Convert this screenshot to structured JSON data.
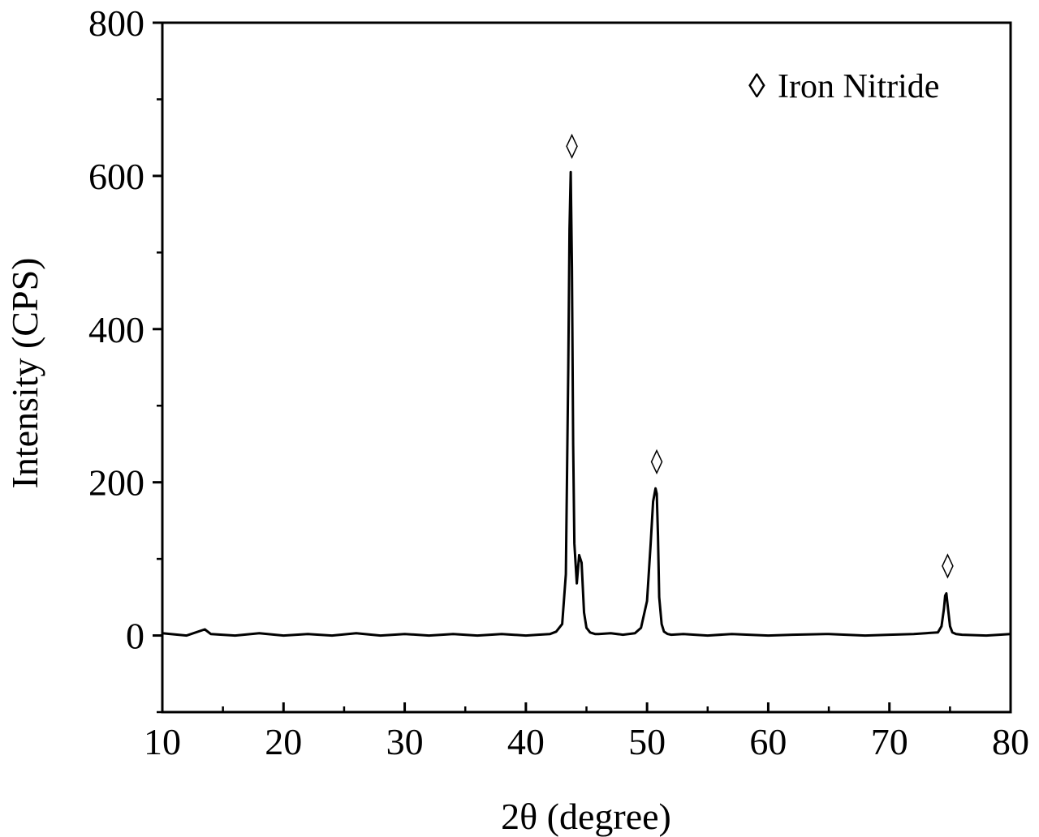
{
  "chart_data": {
    "type": "line",
    "title": "",
    "xlabel": "2θ (degree)",
    "ylabel": "Intensity (CPS)",
    "xlim": [
      10,
      80
    ],
    "ylim": [
      -100,
      800
    ],
    "xticks": [
      10,
      20,
      30,
      40,
      50,
      60,
      70,
      80
    ],
    "yticks": [
      0,
      200,
      400,
      600,
      800
    ],
    "grid": false,
    "legend": {
      "symbol": "◊",
      "label": "Iron Nitride",
      "placement": "top-right"
    },
    "line_color": "#000000",
    "series": [
      {
        "x": [
          10,
          12,
          13.5,
          14,
          16,
          18,
          20,
          22,
          24,
          26,
          28,
          30,
          32,
          34,
          36,
          38,
          40,
          41,
          42,
          42.5,
          43,
          43.3,
          43.5,
          43.6,
          43.7,
          43.8,
          43.9,
          44.0,
          44.2,
          44.4,
          44.6,
          44.8,
          45.0,
          45.3,
          45.7,
          46,
          47,
          48,
          49,
          49.5,
          50.0,
          50.3,
          50.5,
          50.7,
          50.8,
          50.9,
          51.0,
          51.2,
          51.4,
          51.7,
          52,
          53,
          55,
          57,
          60,
          62,
          65,
          68,
          70,
          72,
          73,
          74,
          74.3,
          74.5,
          74.6,
          74.7,
          74.8,
          75.0,
          75.2,
          75.5,
          76,
          78,
          80
        ],
        "y": [
          3,
          0,
          8,
          2,
          0,
          3,
          0,
          2,
          0,
          3,
          0,
          2,
          0,
          2,
          0,
          2,
          0,
          1,
          2,
          5,
          15,
          80,
          350,
          530,
          605,
          480,
          250,
          120,
          68,
          105,
          95,
          30,
          10,
          4,
          2,
          2,
          3,
          1,
          3,
          10,
          45,
          120,
          175,
          192,
          185,
          130,
          50,
          15,
          5,
          2,
          1,
          2,
          0,
          2,
          0,
          1,
          2,
          0,
          1,
          2,
          3,
          4,
          12,
          35,
          52,
          55,
          40,
          12,
          4,
          2,
          1,
          0,
          2
        ]
      }
    ],
    "annotations": [
      {
        "x": 43.8,
        "y": 640,
        "text": "◊"
      },
      {
        "x": 50.8,
        "y": 228,
        "text": "◊"
      },
      {
        "x": 74.8,
        "y": 92,
        "text": "◊"
      }
    ]
  }
}
